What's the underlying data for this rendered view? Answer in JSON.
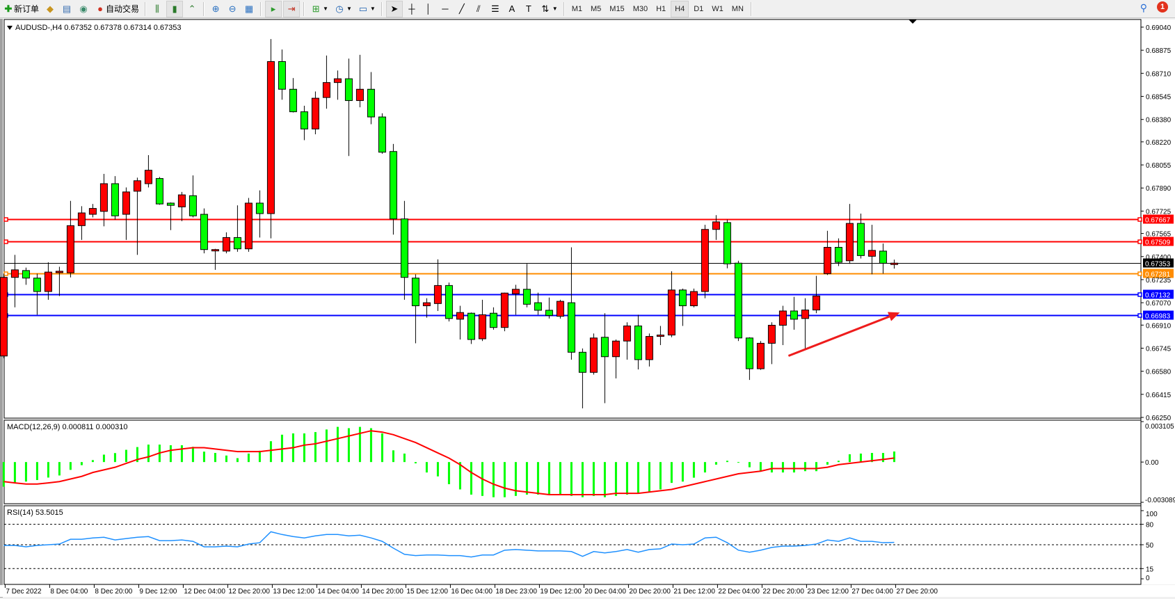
{
  "toolbar": {
    "new_order_label": "新订单",
    "auto_trading_label": "自动交易",
    "timeframes": [
      "M1",
      "M5",
      "M15",
      "M30",
      "H1",
      "H4",
      "D1",
      "W1",
      "MN"
    ],
    "active_timeframe": "H4",
    "notification_count": "1",
    "icons": [
      "new-order-icon",
      "market-watch-icon",
      "navigator-icon",
      "signals-icon",
      "auto-trading-icon",
      "bar-chart-icon",
      "candlestick-icon",
      "line-chart-icon",
      "zoom-in-icon",
      "zoom-out-icon",
      "tile-windows-icon",
      "chart-shift-icon",
      "autoscroll-icon",
      "indicators-icon",
      "periods-icon",
      "templates-icon",
      "cursor-icon",
      "crosshair-icon",
      "vertical-line-icon",
      "horizontal-line-icon",
      "trendline-icon",
      "fibonacci-icon",
      "fibo-fan-icon",
      "text-icon",
      "text-label-icon",
      "arrows-icon",
      "search-icon",
      "notification-icon"
    ]
  },
  "chart": {
    "header": "AUDUSD-,H4  0.67352 0.67378 0.67314 0.67353",
    "colors": {
      "bull": "#ff0000",
      "bear": "#00ff00",
      "background": "#ffffff",
      "grid": "#000000"
    },
    "price_axis": {
      "ylim": [
        0.6625,
        0.6904
      ],
      "ticks": [
        "0.69040",
        "0.68875",
        "0.68710",
        "0.68545",
        "0.68380",
        "0.68220",
        "0.68055",
        "0.67890",
        "0.67725",
        "0.67565",
        "0.67400",
        "0.67235",
        "0.67070",
        "0.66910",
        "0.66745",
        "0.66580",
        "0.66415",
        "0.66250"
      ]
    },
    "levels": [
      {
        "price": "0.67667",
        "color": "#ff0000"
      },
      {
        "price": "0.67509",
        "color": "#ff0000"
      },
      {
        "price": "0.67353",
        "color": "#000000",
        "current": true
      },
      {
        "price": "0.67281",
        "color": "#ff8c00"
      },
      {
        "price": "0.67132",
        "color": "#0000ff"
      },
      {
        "price": "0.66983",
        "color": "#0000ff"
      }
    ],
    "arrow": {
      "color": "#ee1c1c",
      "from_index": 70.5,
      "from_price": 0.6669,
      "to_index": 80.5,
      "to_price": 0.67
    },
    "x_labels": [
      "7 Dec 2022",
      "8 Dec 04:00",
      "8 Dec 20:00",
      "9 Dec 12:00",
      "12 Dec 04:00",
      "12 Dec 20:00",
      "13 Dec 12:00",
      "14 Dec 04:00",
      "14 Dec 20:00",
      "15 Dec 12:00",
      "16 Dec 04:00",
      "18 Dec 23:00",
      "19 Dec 12:00",
      "20 Dec 04:00",
      "20 Dec 20:00",
      "21 Dec 12:00",
      "22 Dec 04:00",
      "22 Dec 20:00",
      "23 Dec 12:00",
      "27 Dec 04:00",
      "27 Dec 20:00"
    ],
    "x_label_every": 4
  },
  "chart_data": [
    {
      "type": "candlestick",
      "title": "AUDUSD-,H4",
      "fields": [
        "open",
        "high",
        "low",
        "close"
      ],
      "ylim": [
        0.6625,
        0.6904
      ],
      "ohlc": [
        [
          0.66689,
          0.67278,
          0.66673,
          0.67251
        ],
        [
          0.67251,
          0.67412,
          0.67037,
          0.67305
        ],
        [
          0.673,
          0.67321,
          0.67198,
          0.67246
        ],
        [
          0.67246,
          0.67278,
          0.66984,
          0.6715
        ],
        [
          0.6715,
          0.67359,
          0.67091,
          0.67289
        ],
        [
          0.67289,
          0.67327,
          0.67118,
          0.67295
        ],
        [
          0.67284,
          0.67798,
          0.67251,
          0.67621
        ],
        [
          0.67621,
          0.6776,
          0.67519,
          0.67712
        ],
        [
          0.67702,
          0.67776,
          0.6768,
          0.67744
        ],
        [
          0.67723,
          0.67991,
          0.67616,
          0.67921
        ],
        [
          0.67921,
          0.67975,
          0.67664,
          0.67691
        ],
        [
          0.67702,
          0.67894,
          0.67519,
          0.67862
        ],
        [
          0.67867,
          0.67964,
          0.67412,
          0.67942
        ],
        [
          0.67921,
          0.68125,
          0.67894,
          0.68017
        ],
        [
          0.67958,
          0.67969,
          0.6777,
          0.67776
        ],
        [
          0.67782,
          0.67787,
          0.67589,
          0.67766
        ],
        [
          0.67755,
          0.67862,
          0.67653,
          0.67841
        ],
        [
          0.67835,
          0.6798,
          0.6768,
          0.67691
        ],
        [
          0.67702,
          0.67744,
          0.67423,
          0.6745
        ],
        [
          0.67444,
          0.67455,
          0.67305,
          0.6745
        ],
        [
          0.67439,
          0.67573,
          0.67423,
          0.67536
        ],
        [
          0.67536,
          0.67766,
          0.67434,
          0.67455
        ],
        [
          0.67455,
          0.67819,
          0.67434,
          0.67782
        ],
        [
          0.67782,
          0.67873,
          0.67536,
          0.67707
        ],
        [
          0.67707,
          0.68955,
          0.6753,
          0.68794
        ],
        [
          0.68794,
          0.6888,
          0.68521,
          0.68596
        ],
        [
          0.68596,
          0.68676,
          0.6843,
          0.68435
        ],
        [
          0.68435,
          0.68478,
          0.68232,
          0.68312
        ],
        [
          0.68312,
          0.6858,
          0.68274,
          0.68532
        ],
        [
          0.68537,
          0.68837,
          0.68457,
          0.68644
        ],
        [
          0.68644,
          0.6873,
          0.68521,
          0.68671
        ],
        [
          0.68671,
          0.68815,
          0.68119,
          0.68515
        ],
        [
          0.68515,
          0.68842,
          0.68467,
          0.68596
        ],
        [
          0.68596,
          0.68719,
          0.68346,
          0.68398
        ],
        [
          0.68398,
          0.68424,
          0.68135,
          0.68146
        ],
        [
          0.68151,
          0.68205,
          0.67557,
          0.67669
        ],
        [
          0.67669,
          0.67798,
          0.67091,
          0.67251
        ],
        [
          0.67246,
          0.67273,
          0.6678,
          0.67048
        ],
        [
          0.67048,
          0.67102,
          0.66963,
          0.6707
        ],
        [
          0.67064,
          0.6738,
          0.67011,
          0.67193
        ],
        [
          0.67193,
          0.67214,
          0.66936,
          0.66957
        ],
        [
          0.66952,
          0.67048,
          0.66807,
          0.67
        ],
        [
          0.66995,
          0.67,
          0.66775,
          0.66807
        ],
        [
          0.66812,
          0.67091,
          0.66796,
          0.66984
        ],
        [
          0.66995,
          0.67037,
          0.66877,
          0.66893
        ],
        [
          0.66893,
          0.67142,
          0.66866,
          0.67139
        ],
        [
          0.67134,
          0.67198,
          0.66984,
          0.67166
        ],
        [
          0.67166,
          0.67348,
          0.67037,
          0.67059
        ],
        [
          0.6707,
          0.67142,
          0.66984,
          0.67016
        ],
        [
          0.67016,
          0.67107,
          0.66957,
          0.66979
        ],
        [
          0.66973,
          0.67091,
          0.66957,
          0.6708
        ],
        [
          0.6707,
          0.67466,
          0.66663,
          0.66716
        ],
        [
          0.66716,
          0.66743,
          0.66315,
          0.66572
        ],
        [
          0.66572,
          0.6685,
          0.66556,
          0.66818
        ],
        [
          0.66823,
          0.66995,
          0.66352,
          0.66684
        ],
        [
          0.66684,
          0.66807,
          0.66529,
          0.66796
        ],
        [
          0.66796,
          0.6693,
          0.66663,
          0.66904
        ],
        [
          0.66904,
          0.66984,
          0.66593,
          0.66663
        ],
        [
          0.66663,
          0.6685,
          0.66614,
          0.66829
        ],
        [
          0.66829,
          0.66904,
          0.66767,
          0.66839
        ],
        [
          0.66839,
          0.67295,
          0.66823,
          0.67161
        ],
        [
          0.67161,
          0.67171,
          0.66904,
          0.67048
        ],
        [
          0.67048,
          0.67171,
          0.67037,
          0.6715
        ],
        [
          0.6715,
          0.67627,
          0.67102,
          0.67594
        ],
        [
          0.67594,
          0.67696,
          0.67519,
          0.67648
        ],
        [
          0.67643,
          0.67664,
          0.67316,
          0.67348
        ],
        [
          0.67353,
          0.6737,
          0.66796,
          0.66818
        ],
        [
          0.66818,
          0.66823,
          0.66518,
          0.66598
        ],
        [
          0.66598,
          0.66796,
          0.6659,
          0.6678
        ],
        [
          0.6678,
          0.6693,
          0.66631,
          0.66909
        ],
        [
          0.66909,
          0.67048,
          0.66767,
          0.67011
        ],
        [
          0.67011,
          0.67112,
          0.66877,
          0.66952
        ],
        [
          0.66957,
          0.67102,
          0.66743,
          0.67018
        ],
        [
          0.67018,
          0.67262,
          0.66995,
          0.67118
        ],
        [
          0.67278,
          0.67584,
          0.67268,
          0.67466
        ],
        [
          0.67466,
          0.6753,
          0.67332,
          0.67359
        ],
        [
          0.6737,
          0.67776,
          0.67348,
          0.67637
        ],
        [
          0.67637,
          0.67707,
          0.67386,
          0.67407
        ],
        [
          0.67402,
          0.67627,
          0.67273,
          0.67444
        ],
        [
          0.67439,
          0.67493,
          0.67278,
          0.67352
        ],
        [
          0.67352,
          0.67378,
          0.67314,
          0.67353
        ]
      ]
    },
    {
      "type": "bar",
      "title": "MACD(12,26,9) 0.000811 0.000310",
      "ylim": [
        -0.003089,
        0.003105
      ],
      "tick_labels": [
        "0.003105",
        "0.00",
        "-0.003089"
      ],
      "series": [
        {
          "type": "bar",
          "color": "#00ff00",
          "values": [
            -0.00189,
            -0.00158,
            -0.0015,
            -0.00138,
            -0.00119,
            -0.00103,
            -0.0006,
            -0.00024,
            0.00015,
            0.00057,
            0.00069,
            0.00094,
            0.00115,
            0.00134,
            0.00134,
            0.00129,
            0.00129,
            0.00117,
            0.0008,
            0.0007,
            0.0005,
            0.0003,
            0.00065,
            0.00087,
            0.0016,
            0.0021,
            0.0022,
            0.0022,
            0.0023,
            0.0025,
            0.0027,
            0.0026,
            0.0027,
            0.0026,
            0.0022,
            0.0009,
            0.00065,
            -0.0001,
            -0.0008,
            -0.0011,
            -0.0017,
            -0.0021,
            -0.0025,
            -0.0026,
            -0.0027,
            -0.0027,
            -0.0026,
            -0.0025,
            -0.0025,
            -0.0025,
            -0.0025,
            -0.0026,
            -0.0027,
            -0.0026,
            -0.0027,
            -0.0026,
            -0.0025,
            -0.0024,
            -0.0023,
            -0.0021,
            -0.0016,
            -0.0015,
            -0.0012,
            -0.0008,
            -0.0002,
            0.0001,
            0.0,
            -0.0004,
            -0.0007,
            -0.0008,
            -0.0008,
            -0.0008,
            -0.0007,
            -0.0007,
            -0.0002,
            0.0001,
            0.0006,
            0.00065,
            0.0007,
            0.0007,
            0.000811
          ]
        },
        {
          "type": "line",
          "color": "#ff0000",
          "values": [
            -0.0015,
            -0.0016,
            -0.00169,
            -0.00169,
            -0.0016,
            -0.0015,
            -0.0013,
            -0.0011,
            -0.0008,
            -0.0006,
            -0.0004,
            -0.0001,
            0.0002,
            0.0004,
            0.0007,
            0.0009,
            0.001,
            0.0011,
            0.0011,
            0.001,
            0.0009,
            0.0008,
            0.0008,
            0.0008,
            0.0009,
            0.001,
            0.0011,
            0.0013,
            0.0014,
            0.0016,
            0.0018,
            0.002,
            0.0022,
            0.0024,
            0.0023,
            0.0021,
            0.0018,
            0.0015,
            0.0011,
            0.0007,
            0.0003,
            -0.0002,
            -0.0008,
            -0.0013,
            -0.0017,
            -0.002,
            -0.0022,
            -0.0023,
            -0.0024,
            -0.0025,
            -0.0025,
            -0.0025,
            -0.0025,
            -0.0025,
            -0.0025,
            -0.0024,
            -0.0024,
            -0.0024,
            -0.0023,
            -0.0022,
            -0.0021,
            -0.0019,
            -0.0017,
            -0.0015,
            -0.0013,
            -0.0011,
            -0.0009,
            -0.0008,
            -0.0007,
            -0.0005,
            -0.0005,
            -0.0005,
            -0.0005,
            -0.0005,
            -0.0004,
            -0.0002,
            -0.0001,
            0.0,
            0.0001,
            0.0002,
            0.00031
          ]
        }
      ]
    },
    {
      "type": "line",
      "title": "RSI(14) 53.5015",
      "ylim": [
        0,
        100
      ],
      "tick_labels": [
        "100",
        "80",
        "50",
        "15",
        "0"
      ],
      "levels": [
        80,
        50,
        15
      ],
      "color": "#1e90ff",
      "values": [
        49,
        49,
        47,
        49,
        50,
        51,
        58,
        58,
        60,
        61,
        57,
        59,
        61,
        62,
        56,
        56,
        57,
        55,
        47,
        47,
        48,
        47,
        51,
        53,
        69,
        65,
        62,
        60,
        63,
        65,
        65,
        63,
        64,
        60,
        55,
        45,
        36,
        34,
        35,
        35,
        34,
        34,
        32,
        35,
        35,
        42,
        43,
        42,
        41,
        41,
        41,
        40,
        33,
        40,
        38,
        40,
        43,
        39,
        43,
        44,
        51,
        50,
        51,
        60,
        61,
        53,
        42,
        39,
        42,
        46,
        48,
        48,
        49,
        51,
        57,
        55,
        60,
        55,
        55,
        53,
        53.5015
      ]
    }
  ]
}
